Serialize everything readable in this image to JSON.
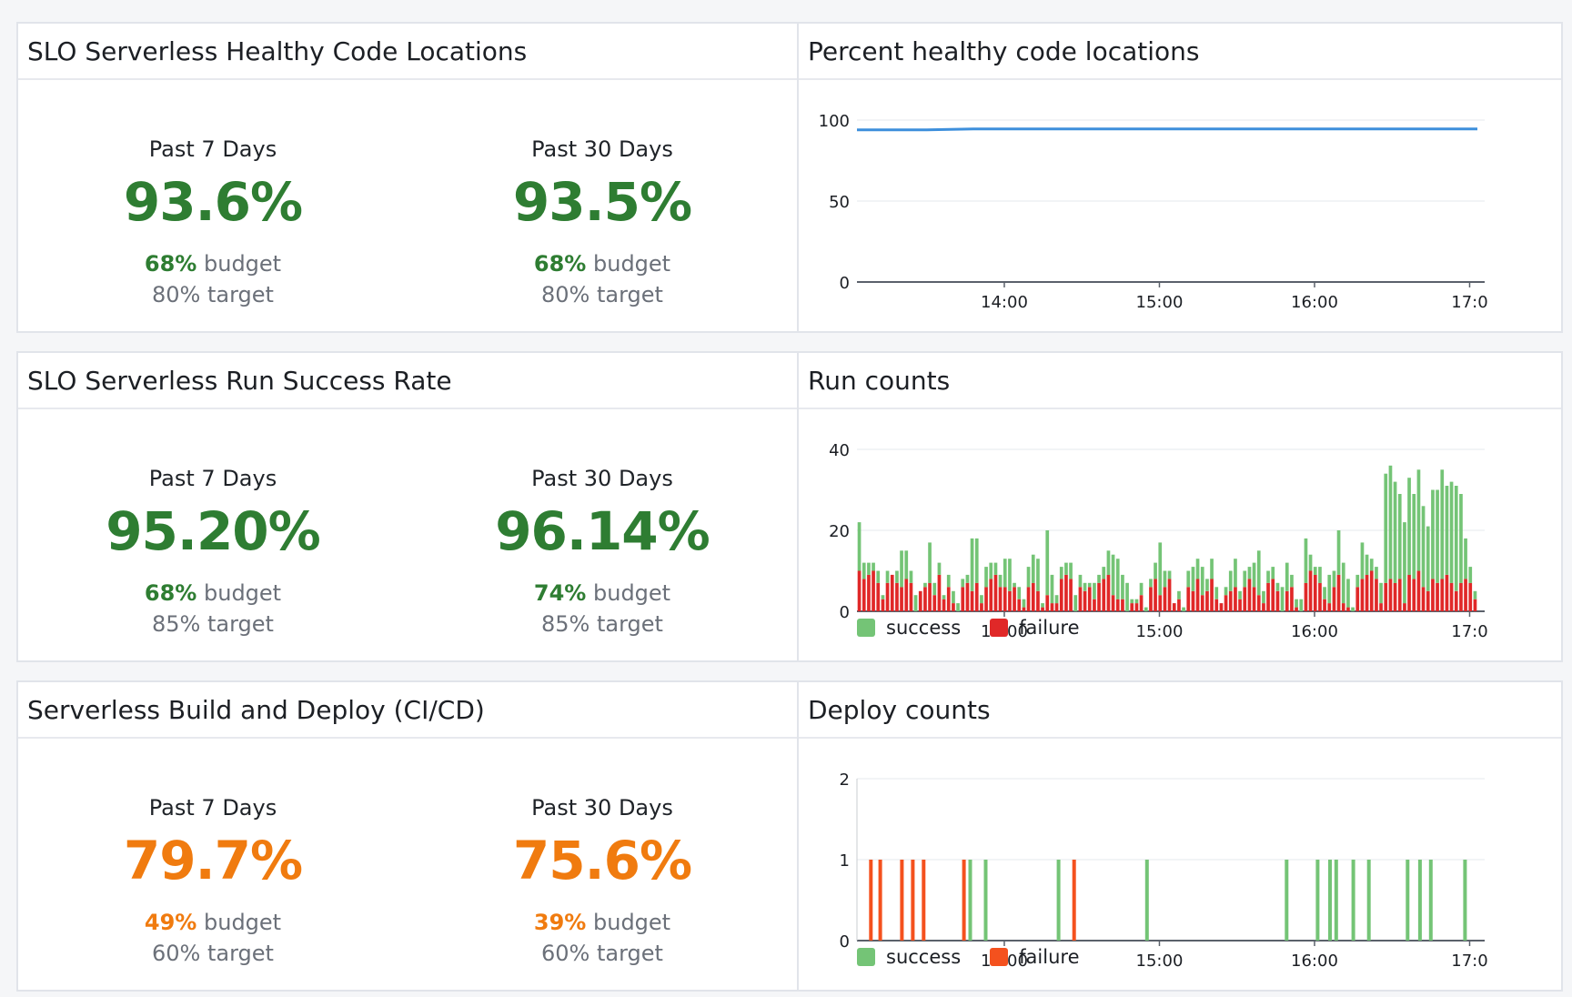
{
  "colors": {
    "slo_green": "#2e7d32",
    "slo_orange": "#f07b0f",
    "line_blue": "#3d8fdc",
    "success_green": "#74c476",
    "failure_red": "#e02828",
    "deploy_failure": "#f4511e"
  },
  "slo_panels": [
    {
      "title": "SLO Serverless Healthy Code Locations",
      "status": "green",
      "periods": [
        {
          "label": "Past 7 Days",
          "value": "93.6%",
          "budget_pct": "68%",
          "budget_word": "budget",
          "target": "80% target"
        },
        {
          "label": "Past 30 Days",
          "value": "93.5%",
          "budget_pct": "68%",
          "budget_word": "budget",
          "target": "80% target"
        }
      ]
    },
    {
      "title": "SLO Serverless Run Success Rate",
      "status": "green",
      "periods": [
        {
          "label": "Past 7 Days",
          "value": "95.20%",
          "budget_pct": "68%",
          "budget_word": "budget",
          "target": "85% target"
        },
        {
          "label": "Past 30 Days",
          "value": "96.14%",
          "budget_pct": "74%",
          "budget_word": "budget",
          "target": "85% target"
        }
      ]
    },
    {
      "title": "Serverless Build and Deploy (CI/CD)",
      "status": "orange",
      "periods": [
        {
          "label": "Past 7 Days",
          "value": "79.7%",
          "budget_pct": "49%",
          "budget_word": "budget",
          "target": "60% target"
        },
        {
          "label": "Past 30 Days",
          "value": "75.6%",
          "budget_pct": "39%",
          "budget_word": "budget",
          "target": "60% target"
        }
      ]
    }
  ],
  "chart_panels": {
    "healthy": {
      "title": "Percent healthy code locations"
    },
    "runs": {
      "title": "Run counts"
    },
    "deploys": {
      "title": "Deploy counts"
    }
  },
  "chart_data": [
    {
      "type": "line",
      "title": "Percent healthy code locations",
      "x_ticks": [
        "14:00",
        "15:00",
        "16:00",
        "17:0"
      ],
      "y_ticks": [
        0,
        50,
        100
      ],
      "ylim": [
        0,
        100
      ],
      "x_range_hours": [
        13.05,
        17.05
      ],
      "grid": true,
      "series": [
        {
          "x": [
            13.05,
            13.5,
            13.8,
            14.5,
            15.0,
            15.5,
            16.0,
            16.5,
            17.05
          ],
          "values": [
            94,
            94,
            94.5,
            94.5,
            94.5,
            94.5,
            94.5,
            94.5,
            94.5
          ]
        }
      ]
    },
    {
      "type": "bar",
      "title": "Run counts",
      "stacked": true,
      "x_ticks": [
        "14:00",
        "15:00",
        "16:00",
        "17:0"
      ],
      "y_ticks": [
        0,
        20,
        40
      ],
      "ylim": [
        0,
        40
      ],
      "x_range_hours": [
        13.05,
        17.05
      ],
      "legend": [
        "success",
        "failure"
      ],
      "legend_position": "bottom-left",
      "series": [
        {
          "name": "success",
          "values": [
            12,
            4,
            3,
            2,
            3,
            1,
            3,
            0,
            3,
            9,
            7,
            3,
            4,
            0,
            1,
            10,
            3,
            3,
            1,
            3,
            3,
            2,
            2,
            2,
            13,
            11,
            2,
            5,
            4,
            3,
            3,
            7,
            8,
            1,
            3,
            2,
            5,
            7,
            8,
            1,
            16,
            7,
            2,
            3,
            3,
            4,
            4,
            3,
            2,
            1,
            4,
            2,
            3,
            6,
            10,
            10,
            6,
            7,
            1,
            1,
            3,
            1,
            2,
            4,
            13,
            4,
            2,
            0,
            2,
            1,
            4,
            6,
            5,
            7,
            3,
            5,
            3,
            0,
            2,
            5,
            7,
            2,
            4,
            3,
            6,
            11,
            3,
            3,
            3,
            2,
            6,
            7,
            3,
            2,
            3,
            11,
            4,
            2,
            4,
            3,
            7,
            4,
            11,
            10,
            7,
            1,
            3,
            9,
            5,
            3,
            3,
            5,
            27,
            28,
            25,
            21,
            20,
            24,
            21,
            25,
            20,
            16,
            22,
            23,
            27,
            22,
            25,
            26,
            22,
            10,
            4,
            2
          ]
        },
        {
          "name": "failure",
          "values": [
            10,
            8,
            9,
            10,
            7,
            3,
            7,
            9,
            7,
            6,
            8,
            7,
            0,
            5,
            6,
            7,
            4,
            9,
            3,
            6,
            2,
            0,
            6,
            7,
            5,
            7,
            2,
            6,
            8,
            9,
            6,
            6,
            5,
            6,
            3,
            1,
            6,
            7,
            5,
            1,
            4,
            2,
            2,
            8,
            9,
            8,
            0,
            6,
            5,
            6,
            3,
            7,
            8,
            9,
            4,
            3,
            3,
            0,
            2,
            2,
            4,
            0,
            6,
            8,
            4,
            6,
            8,
            2,
            3,
            0,
            6,
            5,
            8,
            4,
            5,
            8,
            3,
            2,
            4,
            5,
            6,
            3,
            6,
            8,
            6,
            4,
            2,
            7,
            8,
            5,
            0,
            5,
            6,
            1,
            0,
            7,
            10,
            9,
            7,
            3,
            2,
            6,
            9,
            2,
            1,
            0,
            6,
            8,
            9,
            10,
            8,
            2,
            7,
            8,
            7,
            8,
            2,
            9,
            8,
            10,
            6,
            5,
            8,
            7,
            8,
            9,
            7,
            5,
            7,
            8,
            7,
            3
          ]
        }
      ]
    },
    {
      "type": "bar",
      "title": "Deploy counts",
      "x_ticks": [
        "14:00",
        "15:00",
        "16:00",
        "17:0"
      ],
      "y_ticks": [
        0,
        1,
        2
      ],
      "ylim": [
        0,
        2
      ],
      "x_range_hours": [
        13.05,
        17.05
      ],
      "legend": [
        "success",
        "failure"
      ],
      "legend_position": "bottom-left",
      "series": [
        {
          "name": "success",
          "x": [
            13.78,
            13.88,
            14.35,
            14.92,
            15.82,
            16.02,
            16.1,
            16.14,
            16.25,
            16.35,
            16.6,
            16.68,
            16.75,
            16.97
          ],
          "values": [
            1,
            1,
            1,
            1,
            1,
            1,
            1,
            1,
            1,
            1,
            1,
            1,
            1,
            1
          ]
        },
        {
          "name": "failure",
          "x": [
            13.14,
            13.2,
            13.34,
            13.41,
            13.48,
            13.74,
            14.45
          ],
          "values": [
            1,
            1,
            1,
            1,
            1,
            1,
            1
          ]
        }
      ]
    }
  ]
}
